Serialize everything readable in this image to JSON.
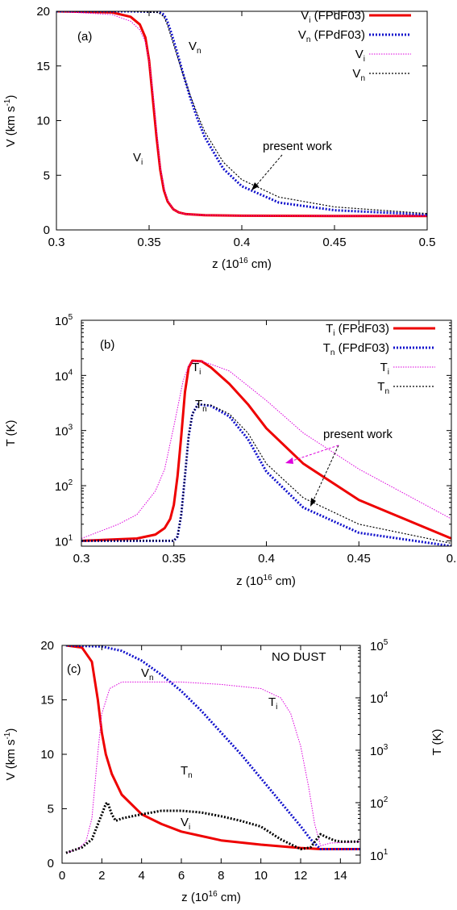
{
  "colors": {
    "vi_ref": "#ee0000",
    "vn_ref": "#1111cc",
    "vi_present": "#dd00dd",
    "vn_present": "#000000"
  },
  "chart_data": [
    {
      "type": "line",
      "panel_label": "(a)",
      "xlabel": "z (10",
      "xlabel_sup": "16",
      "xlabel_unit": " cm)",
      "ylabel": "V (km s",
      "ylabel_sup": "-1",
      "ylabel_end": ")",
      "xlim": [
        0.3,
        0.5
      ],
      "ylim": [
        0,
        20
      ],
      "xticks": [
        "0.3",
        "0.35",
        "0.4",
        "0.45",
        "0.5"
      ],
      "yticks": [
        "0",
        "5",
        "10",
        "15",
        "20"
      ],
      "legend": [
        {
          "base": "V",
          "sub": "i",
          "rest": " (FPdF03)"
        },
        {
          "base": "V",
          "sub": "n",
          "rest": " (FPdF03)"
        },
        {
          "base": "V",
          "sub": "i",
          "rest": ""
        },
        {
          "base": "V",
          "sub": "n",
          "rest": ""
        }
      ],
      "annotations": [
        {
          "base": "V",
          "sub": "n"
        },
        {
          "base": "V",
          "sub": "i"
        },
        {
          "text": "present work"
        }
      ],
      "series": [
        {
          "x": [
            0.3,
            0.33,
            0.34,
            0.345,
            0.348,
            0.35,
            0.352,
            0.354,
            0.356,
            0.358,
            0.36,
            0.363,
            0.366,
            0.37,
            0.38,
            0.4,
            0.45,
            0.5
          ],
          "y": [
            20,
            19.9,
            19.5,
            18.8,
            17.6,
            15.5,
            12.0,
            8.5,
            5.5,
            3.6,
            2.6,
            1.9,
            1.6,
            1.45,
            1.35,
            1.3,
            1.28,
            1.28
          ]
        },
        {
          "x": [
            0.3,
            0.34,
            0.355,
            0.358,
            0.36,
            0.362,
            0.365,
            0.368,
            0.372,
            0.376,
            0.38,
            0.39,
            0.4,
            0.42,
            0.45,
            0.5
          ],
          "y": [
            20,
            20,
            19.95,
            19.7,
            19.0,
            18.0,
            16.3,
            14.5,
            12.2,
            10.2,
            8.5,
            5.6,
            4.0,
            2.5,
            1.8,
            1.4
          ]
        },
        {
          "x": [
            0.3,
            0.33,
            0.34,
            0.345,
            0.348,
            0.35,
            0.352,
            0.354,
            0.356,
            0.358,
            0.36,
            0.363,
            0.366,
            0.37,
            0.38,
            0.4,
            0.45,
            0.5
          ],
          "y": [
            20,
            19.7,
            19.1,
            18.3,
            17.2,
            15.5,
            12.7,
            9.2,
            5.8,
            3.9,
            2.7,
            1.9,
            1.6,
            1.45,
            1.35,
            1.3,
            1.28,
            1.28
          ]
        },
        {
          "x": [
            0.3,
            0.34,
            0.355,
            0.358,
            0.36,
            0.362,
            0.365,
            0.368,
            0.372,
            0.376,
            0.38,
            0.39,
            0.4,
            0.42,
            0.45,
            0.5
          ],
          "y": [
            20,
            20,
            19.9,
            19.5,
            18.7,
            17.6,
            16.0,
            14.4,
            12.4,
            10.6,
            9.0,
            6.2,
            4.6,
            3.0,
            2.1,
            1.5
          ]
        }
      ]
    },
    {
      "type": "line",
      "panel_label": "(b)",
      "xlabel": "z (10",
      "xlabel_sup": "16",
      "xlabel_unit": " cm)",
      "ylabel": "T (K)",
      "xlim": [
        0.3,
        0.5
      ],
      "ylim": [
        8,
        100000
      ],
      "yscale": "log",
      "xticks": [
        "0.3",
        "0.35",
        "0.4",
        "0.45",
        "0."
      ],
      "yticks": [
        {
          "base": "10",
          "exp": "1"
        },
        {
          "base": "10",
          "exp": "2"
        },
        {
          "base": "10",
          "exp": "3"
        },
        {
          "base": "10",
          "exp": "4"
        },
        {
          "base": "10",
          "exp": "5"
        }
      ],
      "legend": [
        {
          "base": "T",
          "sub": "i",
          "rest": " (FPdF03)"
        },
        {
          "base": "T",
          "sub": "n",
          "rest": " (FPdF03)"
        },
        {
          "base": "T",
          "sub": "i",
          "rest": ""
        },
        {
          "base": "T",
          "sub": "n",
          "rest": ""
        }
      ],
      "annotations": [
        {
          "base": "T",
          "sub": "i"
        },
        {
          "base": "T",
          "sub": "n"
        },
        {
          "text": "present work"
        }
      ],
      "series": [
        {
          "x": [
            0.3,
            0.33,
            0.34,
            0.345,
            0.348,
            0.35,
            0.352,
            0.354,
            0.356,
            0.358,
            0.36,
            0.365,
            0.37,
            0.38,
            0.39,
            0.4,
            0.42,
            0.45,
            0.5
          ],
          "y": [
            10,
            11,
            13,
            17,
            25,
            45,
            150,
            800,
            5000,
            14000,
            18500,
            18000,
            14000,
            7000,
            3000,
            1100,
            250,
            55,
            11
          ]
        },
        {
          "x": [
            0.3,
            0.35,
            0.352,
            0.354,
            0.356,
            0.358,
            0.36,
            0.363,
            0.37,
            0.38,
            0.39,
            0.4,
            0.42,
            0.45,
            0.5
          ],
          "y": [
            10,
            10,
            12,
            30,
            150,
            800,
            2000,
            3000,
            2800,
            1800,
            700,
            180,
            40,
            14,
            8
          ]
        },
        {
          "x": [
            0.3,
            0.32,
            0.33,
            0.34,
            0.345,
            0.35,
            0.355,
            0.358,
            0.36,
            0.365,
            0.37,
            0.38,
            0.4,
            0.42,
            0.45,
            0.5
          ],
          "y": [
            11,
            20,
            30,
            80,
            200,
            1200,
            8000,
            15000,
            18000,
            18000,
            16000,
            12000,
            3500,
            900,
            200,
            25
          ]
        },
        {
          "x": [
            0.3,
            0.35,
            0.352,
            0.354,
            0.356,
            0.358,
            0.36,
            0.363,
            0.37,
            0.38,
            0.39,
            0.4,
            0.42,
            0.45,
            0.5
          ],
          "y": [
            10,
            10,
            12,
            30,
            150,
            800,
            2000,
            3000,
            2900,
            2000,
            900,
            250,
            60,
            20,
            9
          ]
        }
      ]
    },
    {
      "type": "line",
      "panel_label": "(c)",
      "title_note": "NO DUST",
      "xlabel": "z (10",
      "xlabel_sup": "16",
      "xlabel_unit": " cm)",
      "ylabel": "V (km s",
      "ylabel_sup": "-1",
      "ylabel_end": ")",
      "y2label": "T (K)",
      "xlim": [
        0,
        15
      ],
      "ylim": [
        0,
        20
      ],
      "y2lim": [
        7,
        100000
      ],
      "y2scale": "log",
      "xticks": [
        "0",
        "2",
        "4",
        "6",
        "8",
        "10",
        "12",
        "14"
      ],
      "yticks": [
        "0",
        "5",
        "10",
        "15",
        "20"
      ],
      "y2ticks": [
        {
          "base": "10",
          "exp": "1"
        },
        {
          "base": "10",
          "exp": "2"
        },
        {
          "base": "10",
          "exp": "3"
        },
        {
          "base": "10",
          "exp": "4"
        },
        {
          "base": "10",
          "exp": "5"
        }
      ],
      "annotations": [
        {
          "base": "V",
          "sub": "n"
        },
        {
          "base": "T",
          "sub": "i"
        },
        {
          "base": "T",
          "sub": "n"
        },
        {
          "base": "V",
          "sub": "i"
        }
      ],
      "series": [
        {
          "axis": "V",
          "x": [
            0.2,
            1.0,
            1.5,
            1.8,
            2.0,
            2.2,
            2.5,
            3,
            4,
            5,
            6,
            8,
            10,
            12,
            13,
            15
          ],
          "y": [
            20,
            19.8,
            18.5,
            15,
            12,
            10,
            8.2,
            6.3,
            4.5,
            3.6,
            2.9,
            2.1,
            1.7,
            1.4,
            1.3,
            1.3
          ]
        },
        {
          "axis": "V",
          "x": [
            0.2,
            2,
            3,
            4,
            5,
            6,
            7,
            8,
            9,
            10,
            11,
            12,
            12.5,
            13,
            15
          ],
          "y": [
            20,
            19.9,
            19.5,
            18.6,
            17.3,
            15.8,
            14.0,
            12.0,
            10.0,
            7.8,
            5.6,
            3.4,
            2.2,
            1.3,
            1.3
          ]
        },
        {
          "axis": "T",
          "x": [
            0.2,
            0.8,
            1.2,
            1.5,
            1.8,
            2.0,
            2.4,
            3,
            4,
            6,
            8,
            10,
            11,
            11.5,
            12,
            12.4,
            12.7,
            13,
            13.5,
            15
          ],
          "y": [
            11,
            13,
            18,
            50,
            900,
            5000,
            15000,
            20000,
            20000,
            20000,
            18000,
            15000,
            10000,
            5000,
            1200,
            200,
            40,
            15,
            17,
            18
          ]
        },
        {
          "axis": "T",
          "x": [
            0.2,
            1,
            1.5,
            2,
            2.2,
            2.3,
            2.5,
            2.7,
            3,
            4,
            5,
            6,
            7,
            8,
            9,
            10,
            11,
            12,
            12.5,
            13,
            13.3,
            13.7,
            14,
            15
          ],
          "y": [
            11,
            14,
            20,
            60,
            95,
            100,
            60,
            45,
            50,
            60,
            70,
            70,
            65,
            55,
            45,
            35,
            20,
            13,
            14,
            25,
            22,
            19,
            18,
            18
          ]
        }
      ]
    }
  ]
}
